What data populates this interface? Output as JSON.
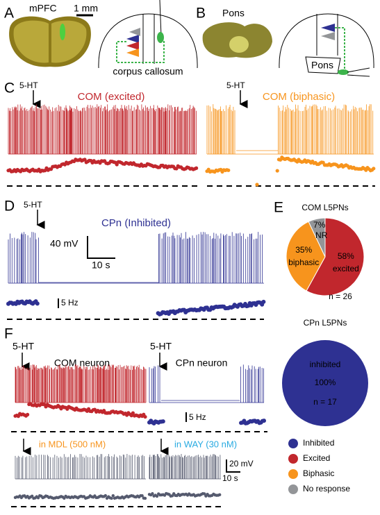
{
  "panels": {
    "A": {
      "label": "A",
      "region": "mPFC",
      "scale": "1 mm",
      "structure": "corpus callosum"
    },
    "B": {
      "label": "B",
      "region": "Pons",
      "target": "Pons"
    },
    "C": {
      "label": "C",
      "traces": [
        {
          "drug": "5-HT",
          "title": "COM (excited)"
        },
        {
          "drug": "5-HT",
          "title": "COM (biphasic)"
        }
      ]
    },
    "D": {
      "label": "D",
      "drug": "5-HT",
      "title": "CPn (Inhibited)",
      "scale_v": "40 mV",
      "scale_t": "10 s",
      "scale_f": "5 Hz"
    },
    "E": {
      "label": "E"
    },
    "F": {
      "label": "F",
      "traces": [
        {
          "drug": "5-HT",
          "title": "COM neuron"
        },
        {
          "drug": "5-HT",
          "title": "CPn neuron"
        }
      ],
      "scale_f": "5 Hz",
      "antagonists": [
        "in MDL (500 nM)",
        "in WAY (30 nM)"
      ],
      "scale_v": "20 mV",
      "scale_t": "10 s"
    }
  },
  "chart_data": [
    {
      "type": "pie",
      "title": "COM L5PNs",
      "categories": [
        "excited",
        "biphasic",
        "NR"
      ],
      "values": [
        58,
        35,
        7
      ],
      "value_labels": [
        "58%",
        "35%",
        "7%"
      ],
      "colors": [
        "#c1272d",
        "#f7941d",
        "#939598"
      ],
      "annotation": "n = 26"
    },
    {
      "type": "pie",
      "title": "CPn  L5PNs",
      "categories": [
        "inhibited"
      ],
      "values": [
        100
      ],
      "value_labels": [
        "100%"
      ],
      "colors": [
        "#2e3192"
      ],
      "annotation": "n = 17"
    }
  ],
  "legend": [
    {
      "name": "Inhibited",
      "color": "#2e3192"
    },
    {
      "name": "Excited",
      "color": "#c1272d"
    },
    {
      "name": "Biphasic",
      "color": "#f7941d"
    },
    {
      "name": "No response",
      "color": "#939598"
    }
  ]
}
